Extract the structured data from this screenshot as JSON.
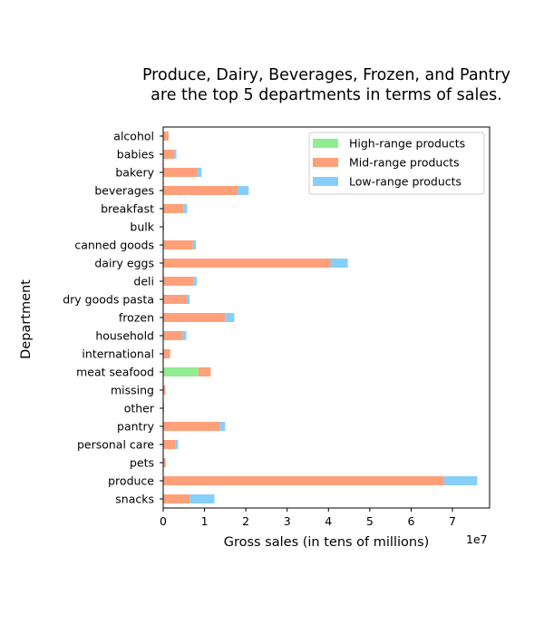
{
  "chart_data": {
    "type": "bar",
    "orientation": "horizontal",
    "stacked": true,
    "title_lines": [
      "Produce, Dairy, Beverages, Frozen, and Pantry",
      "are the top 5 departments in terms of sales."
    ],
    "xlabel": "Gross sales (in tens of millions)",
    "ylabel": "Department",
    "offset_label": "1e7",
    "xlim": [
      0,
      7.9
    ],
    "x_ticks": [
      "0",
      "1",
      "2",
      "3",
      "4",
      "5",
      "6",
      "7"
    ],
    "legend_position": "upper-right",
    "categories": [
      "alcohol",
      "babies",
      "bakery",
      "beverages",
      "breakfast",
      "bulk",
      "canned goods",
      "dairy eggs",
      "deli",
      "dry goods pasta",
      "frozen",
      "household",
      "international",
      "meat seafood",
      "missing",
      "other",
      "pantry",
      "personal care",
      "pets",
      "produce",
      "snacks"
    ],
    "series": [
      {
        "name": "High-range products",
        "color": "#90ee90",
        "values": [
          0,
          0,
          0,
          0,
          0,
          0,
          0,
          0,
          0,
          0,
          0,
          0,
          0,
          0.85,
          0,
          0,
          0,
          0,
          0,
          0,
          0
        ]
      },
      {
        "name": "Mid-range products",
        "color": "#ffa07a",
        "values": [
          0.13,
          0.27,
          0.83,
          1.8,
          0.5,
          0.02,
          0.72,
          4.05,
          0.73,
          0.57,
          1.5,
          0.47,
          0.17,
          0.3,
          0.05,
          0.02,
          1.37,
          0.3,
          0.06,
          6.8,
          0.64
        ]
      },
      {
        "name": "Low-range products",
        "color": "#87cefa",
        "values": [
          0,
          0.05,
          0.1,
          0.27,
          0.08,
          0,
          0.07,
          0.42,
          0.08,
          0.07,
          0.22,
          0.09,
          0,
          0,
          0,
          0,
          0.13,
          0.06,
          0,
          0.8,
          0.6
        ]
      }
    ]
  }
}
